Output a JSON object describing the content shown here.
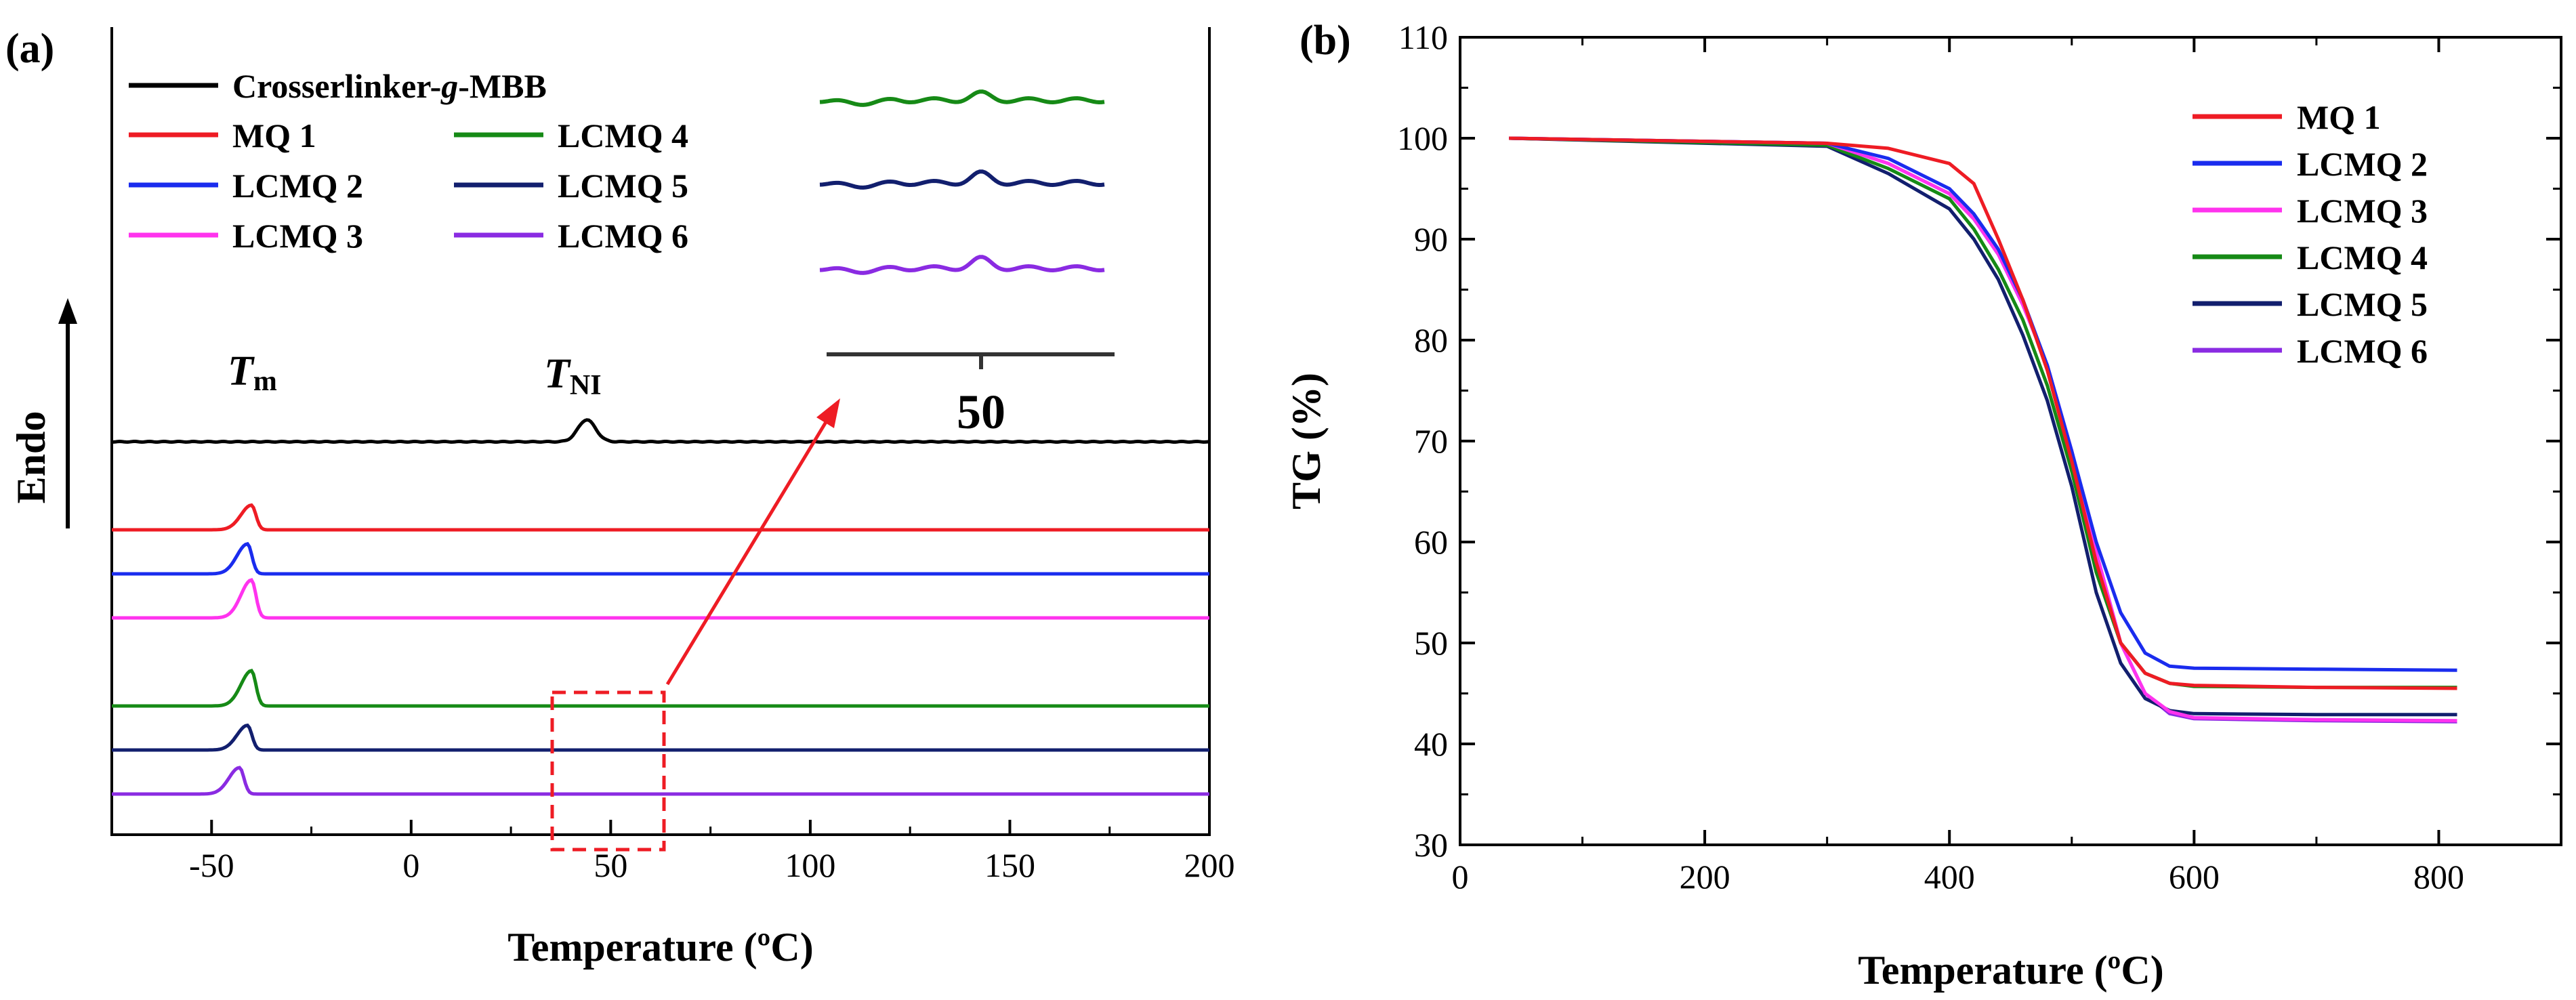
{
  "chart_data": [
    {
      "panel_label": "(a)",
      "type": "line",
      "title": "",
      "xlabel": "Temperature (ºC)",
      "ylabel": "Endo",
      "xlim": [
        -75,
        200
      ],
      "xticks": [
        "-50",
        "0",
        "50",
        "100",
        "150",
        "200"
      ],
      "peak_labels": {
        "tm": "T",
        "tm_sub": "m",
        "tni": "T",
        "tni_sub": "NI"
      },
      "inset_tick": "50",
      "colors": {
        "Crosserlinker-g-MBB": "#000000",
        "MQ 1": "#ee1c24",
        "LCMQ 2": "#1a2cee",
        "LCMQ 3": "#ff33ee",
        "LCMQ 4": "#168a16",
        "LCMQ 5": "#121f6e",
        "LCMQ 6": "#8a2be2"
      },
      "legend": {
        "crosslinker_prefix": "Crosserlinker-",
        "crosslinker_italic": "g",
        "crosslinker_suffix": "-MBB",
        "items": [
          "MQ 1",
          "LCMQ 2",
          "LCMQ 3",
          "LCMQ 4",
          "LCMQ 5",
          "LCMQ 6"
        ]
      },
      "series": [
        {
          "name": "Crosserlinker-g-MBB",
          "baseline": 1.0,
          "peaks": [
            {
              "x": 44,
              "height": 0.25,
              "note": "T_NI"
            }
          ]
        },
        {
          "name": "MQ 1",
          "baseline": 0.0,
          "peaks": [
            {
              "x": -40,
              "height": 0.28,
              "note": "T_m"
            }
          ]
        },
        {
          "name": "LCMQ 2",
          "baseline": -0.5,
          "peaks": [
            {
              "x": -41,
              "height": 0.34,
              "note": "T_m"
            }
          ]
        },
        {
          "name": "LCMQ 3",
          "baseline": -1.0,
          "peaks": [
            {
              "x": -40,
              "height": 0.43,
              "note": "T_m"
            }
          ]
        },
        {
          "name": "LCMQ 4",
          "baseline": -2.0,
          "peaks": [
            {
              "x": -40,
              "height": 0.4,
              "note": "T_m"
            }
          ]
        },
        {
          "name": "LCMQ 5",
          "baseline": -2.5,
          "peaks": [
            {
              "x": -41,
              "height": 0.28,
              "note": "T_m"
            }
          ]
        },
        {
          "name": "LCMQ 6",
          "baseline": -3.0,
          "peaks": [
            {
              "x": -43,
              "height": 0.3,
              "note": "T_m"
            }
          ]
        }
      ]
    },
    {
      "panel_label": "(b)",
      "type": "line",
      "title": "",
      "xlabel": "Temperature (ºC)",
      "ylabel": "TG (%)",
      "xlim": [
        0,
        900
      ],
      "ylim": [
        30,
        110
      ],
      "xticks": [
        0,
        200,
        400,
        600,
        800
      ],
      "yticks": [
        30,
        40,
        50,
        60,
        70,
        80,
        90,
        100,
        110
      ],
      "series": [
        {
          "name": "MQ 1",
          "color": "#ee1c24",
          "x": [
            40,
            300,
            350,
            400,
            420,
            440,
            460,
            480,
            500,
            520,
            540,
            560,
            580,
            600,
            700,
            815
          ],
          "y": [
            100,
            99.5,
            99,
            97.5,
            95.5,
            90,
            84,
            77,
            68,
            58,
            50,
            47,
            46,
            45.8,
            45.6,
            45.5
          ]
        },
        {
          "name": "LCMQ 2",
          "color": "#1a2cee",
          "x": [
            40,
            300,
            350,
            400,
            420,
            440,
            460,
            480,
            500,
            520,
            540,
            560,
            580,
            600,
            700,
            815
          ],
          "y": [
            100,
            99.5,
            98,
            95,
            92.5,
            89,
            84,
            77.5,
            69,
            60,
            53,
            49,
            47.7,
            47.5,
            47.4,
            47.3
          ]
        },
        {
          "name": "LCMQ 3",
          "color": "#ff33ee",
          "x": [
            40,
            300,
            350,
            400,
            420,
            440,
            460,
            480,
            500,
            520,
            540,
            560,
            580,
            600,
            700,
            815
          ],
          "y": [
            100,
            99.5,
            97.5,
            94.5,
            92,
            88.5,
            83.5,
            77.5,
            69,
            59,
            50,
            45,
            43.2,
            42.6,
            42.4,
            42.3
          ]
        },
        {
          "name": "LCMQ 4",
          "color": "#168a16",
          "x": [
            40,
            300,
            350,
            400,
            420,
            440,
            460,
            480,
            500,
            520,
            540,
            560,
            580,
            600,
            700,
            815
          ],
          "y": [
            100,
            99.3,
            97,
            94,
            91,
            87,
            82,
            75.5,
            67,
            57,
            50,
            47,
            46,
            45.7,
            45.6,
            45.6
          ]
        },
        {
          "name": "LCMQ 5",
          "color": "#121f6e",
          "x": [
            40,
            300,
            350,
            400,
            420,
            440,
            460,
            480,
            500,
            520,
            540,
            560,
            580,
            600,
            700,
            815
          ],
          "y": [
            100,
            99.2,
            96.5,
            93,
            90,
            86,
            80.5,
            74,
            65.5,
            55,
            48,
            44.5,
            43.3,
            43,
            42.9,
            42.9
          ]
        },
        {
          "name": "LCMQ 6",
          "color": "#8a2be2",
          "x": [
            40,
            300,
            350,
            400,
            420,
            440,
            460,
            480,
            500,
            520,
            540,
            560,
            580,
            600,
            700,
            815
          ],
          "y": [
            100,
            99.5,
            97.5,
            94.5,
            92,
            88.5,
            83.5,
            77.5,
            69,
            59,
            50,
            45,
            43,
            42.5,
            42.3,
            42.2
          ]
        }
      ]
    }
  ]
}
